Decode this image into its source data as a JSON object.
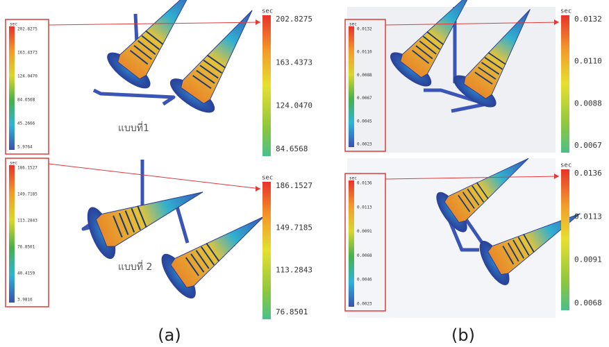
{
  "panels": [
    {
      "caption": "(a)",
      "views": [
        {
          "label": "แบบที่1",
          "unit": "sec",
          "legend_ticks": [
            "202.8275",
            "163.4373",
            "124.0470",
            "84.6568",
            "45.2666",
            "5.9764"
          ],
          "zoom_unit": "sec",
          "zoom_ticks": [
            "202.8275",
            "163.4373",
            "124.0470",
            "84.6568"
          ]
        },
        {
          "label": "แบบที่ 2",
          "unit": "sec",
          "legend_ticks": [
            "186.1527",
            "149.7185",
            "113.2843",
            "76.8501",
            "40.4159",
            "3.9816"
          ],
          "zoom_unit": "sec",
          "zoom_ticks": [
            "186.1527",
            "149.7185",
            "113.2843",
            "76.8501"
          ]
        }
      ]
    },
    {
      "caption": "(b)",
      "views": [
        {
          "unit": "sec",
          "legend_ticks": [
            "0.0132",
            "0.0110",
            "0.0088",
            "0.0067",
            "0.0045",
            "0.0023"
          ],
          "zoom_unit": "sec",
          "zoom_ticks": [
            "0.0132",
            "0.0110",
            "0.0088",
            "0.0067"
          ]
        },
        {
          "unit": "sec",
          "legend_ticks": [
            "0.0136",
            "0.0113",
            "0.0091",
            "0.0068",
            "0.0046",
            "0.0023"
          ],
          "zoom_unit": "sec",
          "zoom_ticks": [
            "0.0136",
            "0.0113",
            "0.0091",
            "0.0068"
          ]
        }
      ]
    }
  ]
}
